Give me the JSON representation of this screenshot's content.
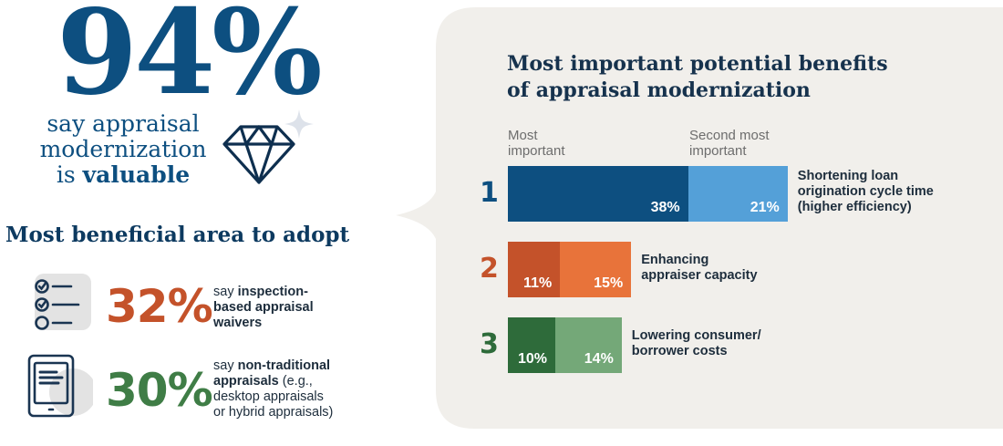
{
  "headline": {
    "percent": "94%",
    "line1": "say appraisal",
    "line2": "modernization",
    "line3_prefix": "is ",
    "line3_bold": "valuable"
  },
  "adopt": {
    "heading": "Most beneficial area to adopt",
    "items": [
      {
        "percent": "32%",
        "bold": "inspection-based appraisal waivers",
        "prefix": "say ",
        "line1": "inspection-",
        "line2": "based appraisal",
        "line3": "waivers",
        "color": "#c4522a"
      },
      {
        "percent": "30%",
        "prefix": "say ",
        "line1_bold": "non-traditional",
        "line2_bold": "appraisals",
        "line2_rest": " (e.g.,",
        "line3": "desktop appraisals",
        "line4": "or hybrid appraisals)",
        "color": "#3f7d46"
      }
    ]
  },
  "colors": {
    "navy": "#0d4f80",
    "blue_light": "#54a0d8",
    "orange_dark": "#c4522a",
    "orange_light": "#e8733a",
    "green_dark": "#2e6b3a",
    "green_light": "#74a878",
    "panel": "#f1efeb"
  },
  "chart_data": {
    "type": "bar",
    "orientation": "horizontal-stacked",
    "title": "Most important potential benefits of appraisal modernization",
    "title_line1": "Most important potential benefits",
    "title_line2": "of appraisal modernization",
    "legend": [
      "Most important",
      "Second most important"
    ],
    "legend_lines": [
      [
        "Most",
        "important"
      ],
      [
        "Second most",
        "important"
      ]
    ],
    "categories": [
      "Shortening loan origination cycle time (higher efficiency)",
      "Enhancing appraiser capacity",
      "Lowering consumer/ borrower costs"
    ],
    "ranks": [
      "1",
      "2",
      "3"
    ],
    "series": [
      {
        "name": "Most important",
        "values": [
          38,
          11,
          10
        ]
      },
      {
        "name": "Second most important",
        "values": [
          21,
          15,
          14
        ]
      }
    ],
    "value_labels": [
      [
        "38%",
        "21%"
      ],
      [
        "11%",
        "15%"
      ],
      [
        "10%",
        "14%"
      ]
    ],
    "category_lines": [
      [
        "Shortening loan",
        "origination cycle time",
        "(higher efficiency)"
      ],
      [
        "Enhancing",
        "appraiser capacity"
      ],
      [
        "Lowering consumer/",
        "borrower costs"
      ]
    ]
  }
}
